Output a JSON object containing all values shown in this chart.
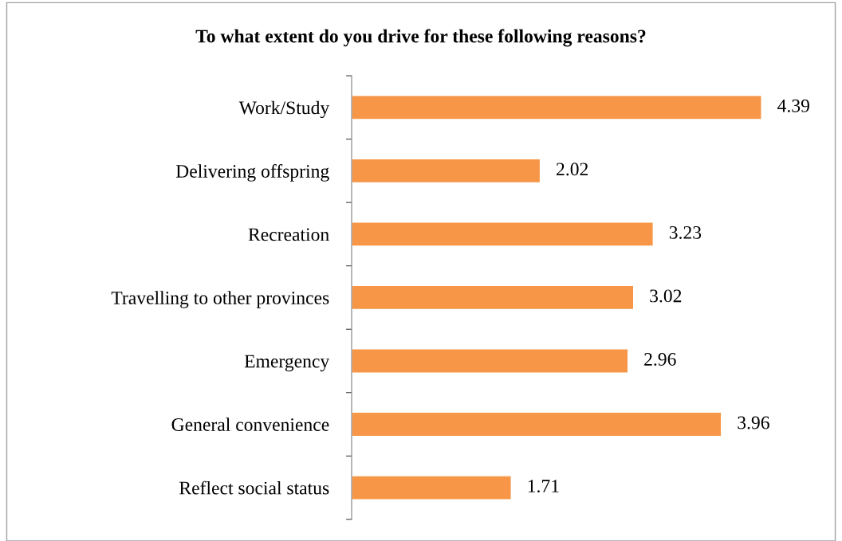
{
  "chart_data": {
    "type": "bar",
    "orientation": "horizontal",
    "title": "To what extent do you drive for these following reasons?",
    "categories": [
      "Work/Study",
      "Delivering offspring",
      "Recreation",
      "Travelling to other provinces",
      "Emergency",
      "General convenience",
      "Reflect social status"
    ],
    "values": [
      4.39,
      2.02,
      3.23,
      3.02,
      2.96,
      3.96,
      1.71
    ],
    "color": "#f79646",
    "data_labels": true,
    "grid": false,
    "legend": false
  }
}
